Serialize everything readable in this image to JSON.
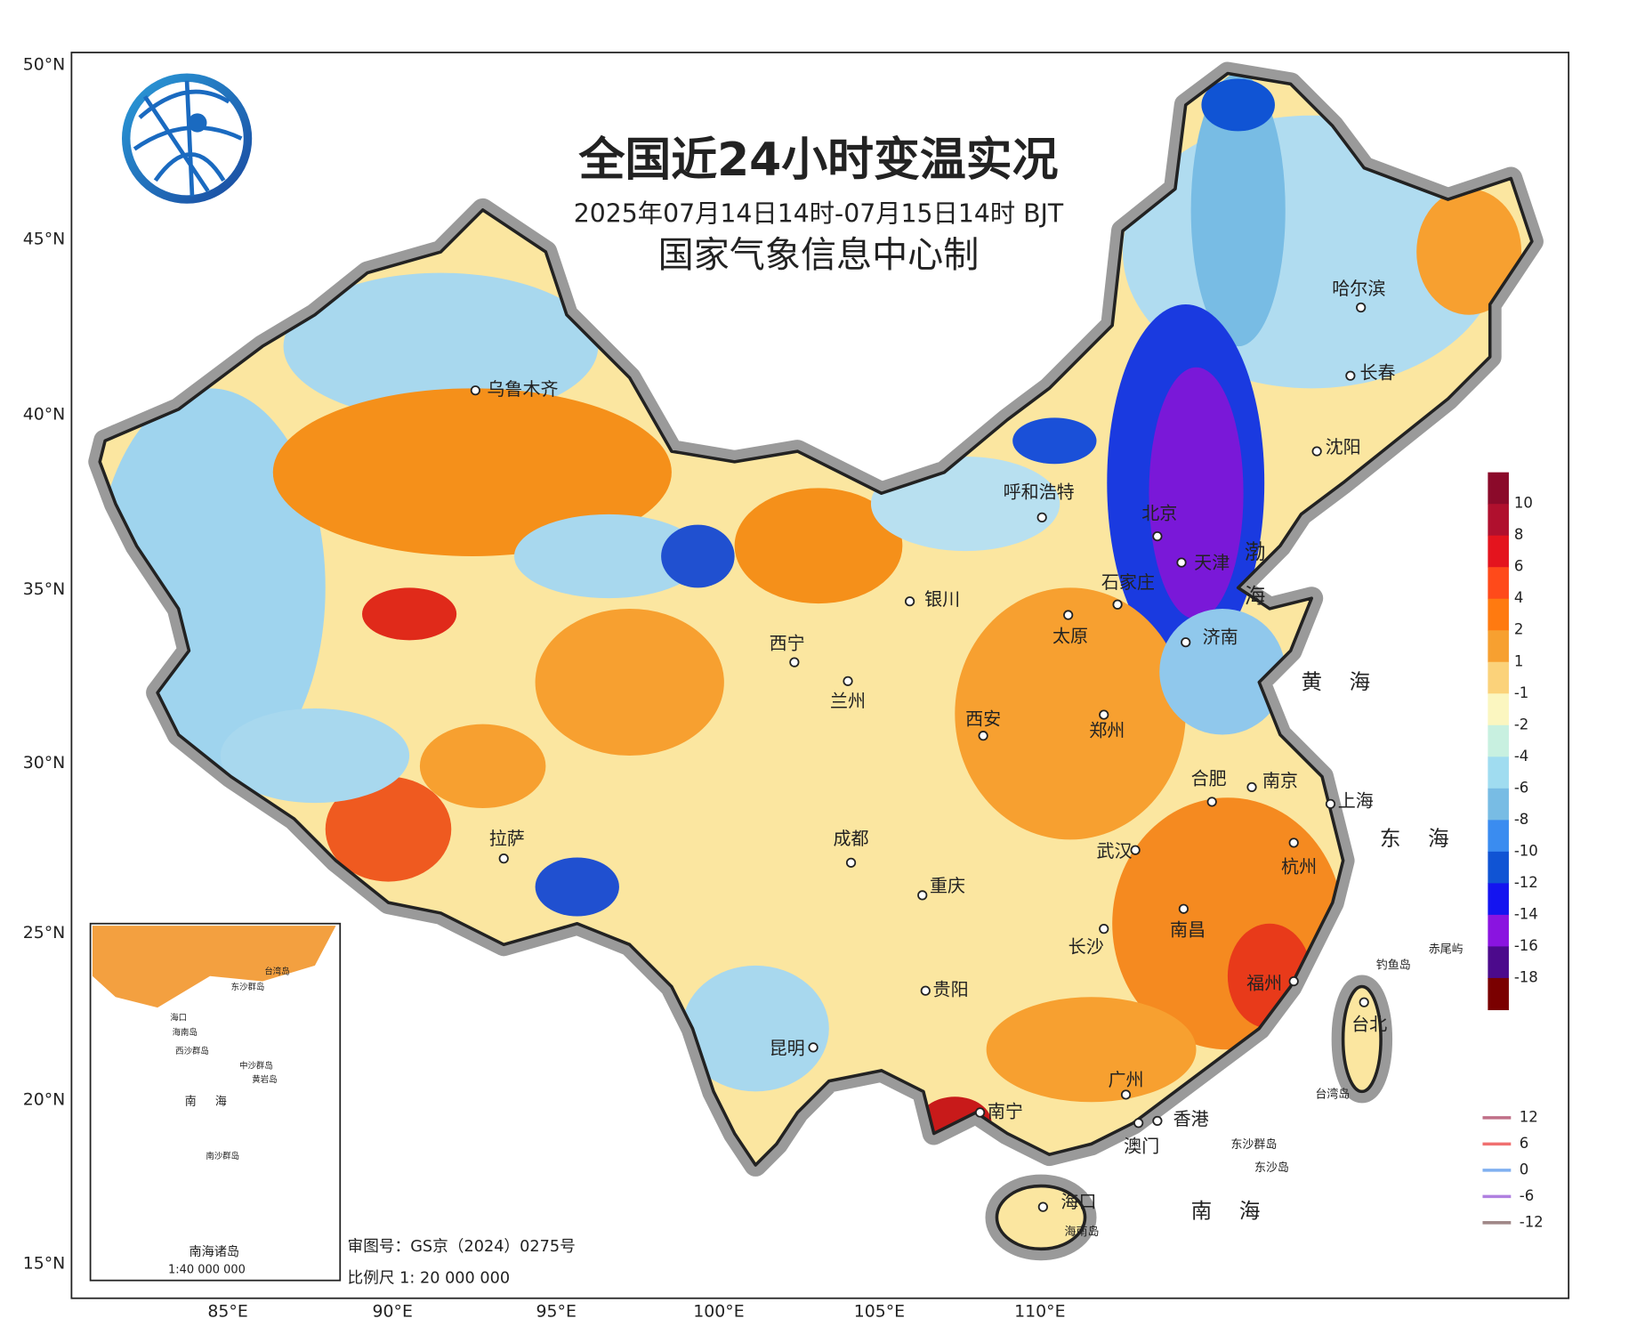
{
  "header": {
    "title": "全国近24小时变温实况",
    "subtitle": "2025年07月14日14时-07月15日14时 BJT",
    "producer": "国家气象信息中心制"
  },
  "axes": {
    "latitude": [
      "50°N",
      "45°N",
      "40°N",
      "35°N",
      "30°N",
      "25°N",
      "20°N",
      "15°N"
    ],
    "longitude": [
      "85°E",
      "90°E",
      "95°E",
      "100°E",
      "105°E",
      "110°E"
    ]
  },
  "cities": [
    "乌鲁木齐",
    "呼和浩特",
    "哈尔滨",
    "长春",
    "沈阳",
    "北京",
    "天津",
    "石家庄",
    "太原",
    "济南",
    "银川",
    "西宁",
    "兰州",
    "西安",
    "郑州",
    "合肥",
    "南京",
    "上海",
    "拉萨",
    "成都",
    "武汉",
    "杭州",
    "重庆",
    "长沙",
    "南昌",
    "贵阳",
    "福州",
    "台北",
    "昆明",
    "南宁",
    "广州",
    "香港",
    "澳门",
    "海口"
  ],
  "places": [
    "海南岛",
    "东沙群岛",
    "东沙岛",
    "台湾岛",
    "钓鱼岛",
    "赤尾屿"
  ],
  "seas": [
    "渤海",
    "黄海",
    "东海",
    "南海"
  ],
  "legend": {
    "labels": [
      "10",
      "8",
      "6",
      "4",
      "2",
      "1",
      "-1",
      "-2",
      "-4",
      "-6",
      "-8",
      "-10",
      "-12",
      "-14",
      "-16",
      "-18"
    ],
    "colors": [
      "#8b0a2a",
      "#b0102e",
      "#e4141e",
      "#ff4a1a",
      "#ff7a10",
      "#f7a030",
      "#fbd27a",
      "#fbf6c0",
      "#c8f0e0",
      "#a0dcf0",
      "#78bce4",
      "#3a8cf0",
      "#1054d4",
      "#1414f0",
      "#8a14e0",
      "#4c0a8c",
      "#7a0000"
    ]
  },
  "contour_legend": {
    "labels": [
      "12",
      "6",
      "0",
      "-6",
      "-12"
    ],
    "colors": [
      "#c07088",
      "#f07070",
      "#80b0f0",
      "#b080e0",
      "#a08888"
    ]
  },
  "inset": {
    "title": "南海诸岛",
    "scale": "1:40 000 000",
    "labels": [
      "海口",
      "海南岛",
      "东沙群岛",
      "西沙群岛",
      "中沙群岛",
      "黄岩岛",
      "南海",
      "南沙群岛",
      "台湾岛"
    ]
  },
  "footer": {
    "approval": "审图号：GS京（2024）0275号",
    "scale": "比例尺 1: 20 000 000"
  }
}
